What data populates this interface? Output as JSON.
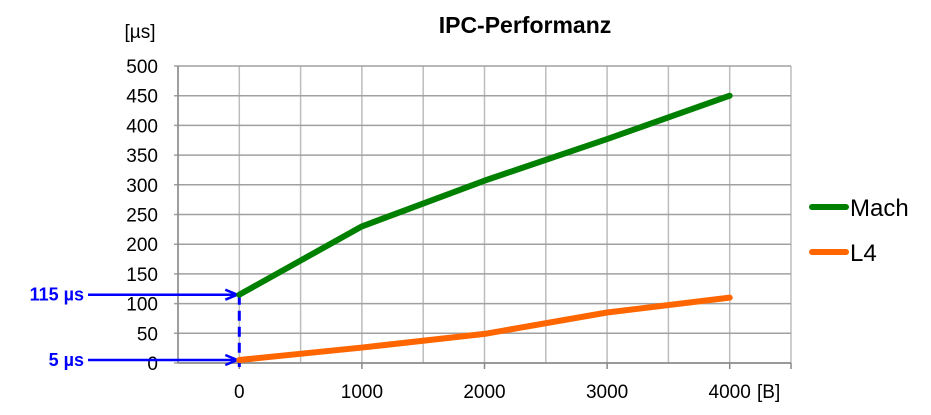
{
  "chart_data": {
    "type": "line",
    "title": "IPC-Performanz",
    "xlabel": "[B]",
    "ylabel": "[µs]",
    "xlim": [
      -500,
      4500
    ],
    "ylim": [
      0,
      500
    ],
    "x_ticks": [
      0,
      1000,
      2000,
      3000,
      4000
    ],
    "y_ticks": [
      0,
      50,
      100,
      150,
      200,
      250,
      300,
      350,
      400,
      450,
      500
    ],
    "grid": true,
    "legend_position": "right",
    "x": [
      0,
      1000,
      2000,
      3000,
      4000
    ],
    "series": [
      {
        "name": "Mach",
        "color": "#008000",
        "values": [
          115,
          230,
          307,
          377,
          450
        ]
      },
      {
        "name": "L4",
        "color": "#ff6600",
        "values": [
          5,
          26,
          49,
          85,
          110
        ]
      }
    ],
    "annotations": [
      {
        "text": "115 µs",
        "y": 115,
        "color": "#0000ff"
      },
      {
        "text": "5 µs",
        "y": 5,
        "color": "#0000ff"
      }
    ]
  }
}
